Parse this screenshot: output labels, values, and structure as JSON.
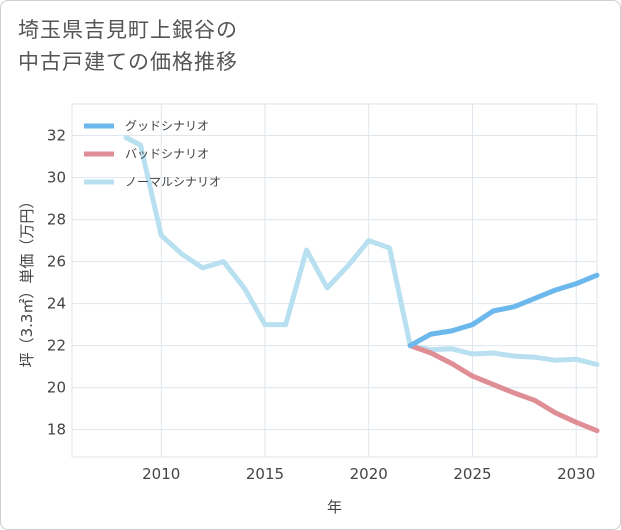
{
  "title_line1": "埼玉県吉見町上銀谷の",
  "title_line2": "中古戸建ての価格推移",
  "chart_data": {
    "type": "line",
    "xlabel": "年",
    "ylabel": "坪（3.3㎡）単価（万円）",
    "xlim": [
      2005.7,
      2031
    ],
    "ylim": [
      16.7,
      33.5
    ],
    "xticks": [
      2010,
      2015,
      2020,
      2025,
      2030
    ],
    "yticks": [
      18,
      20,
      22,
      24,
      26,
      28,
      30,
      32
    ],
    "legend_position": "top-left",
    "series": [
      {
        "name": "グッドシナリオ",
        "color": "#6cb8ec",
        "x": [
          2022,
          2023,
          2024,
          2025,
          2026,
          2027,
          2028,
          2029,
          2030,
          2031
        ],
        "y": [
          22.0,
          22.55,
          22.7,
          23.0,
          23.65,
          23.85,
          24.25,
          24.65,
          24.95,
          25.35
        ]
      },
      {
        "name": "バッドシナリオ",
        "color": "#e08e96",
        "x": [
          2022,
          2023,
          2024,
          2025,
          2026,
          2027,
          2028,
          2029,
          2030,
          2031
        ],
        "y": [
          22.0,
          21.65,
          21.15,
          20.55,
          20.15,
          19.75,
          19.4,
          18.8,
          18.35,
          17.95
        ]
      },
      {
        "name": "ノーマルシナリオ",
        "color": "#b8e0f0",
        "x": [
          2008.3,
          2009,
          2010,
          2011,
          2012,
          2013,
          2014,
          2015,
          2016,
          2017,
          2018,
          2019,
          2020,
          2021,
          2022,
          2023,
          2024,
          2025,
          2026,
          2027,
          2028,
          2029,
          2030,
          2031
        ],
        "y": [
          31.9,
          31.55,
          27.25,
          26.35,
          25.7,
          26.0,
          24.75,
          23.0,
          23.0,
          26.55,
          24.75,
          25.8,
          27.0,
          26.65,
          22.0,
          21.8,
          21.85,
          21.6,
          21.65,
          21.5,
          21.45,
          21.3,
          21.35,
          21.1
        ]
      }
    ]
  }
}
